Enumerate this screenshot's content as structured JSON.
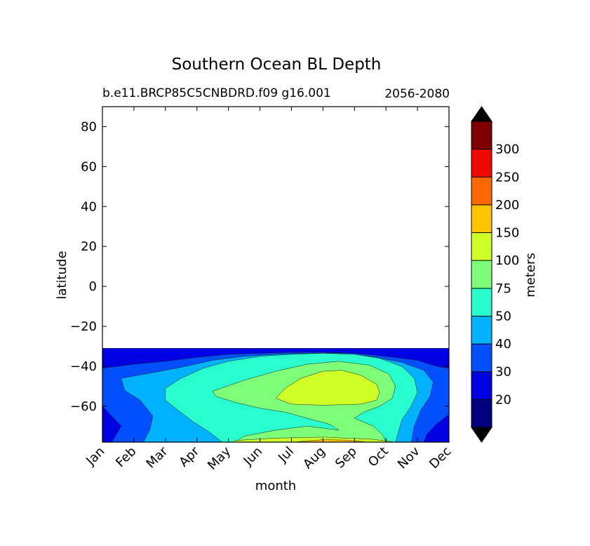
{
  "chart_data": {
    "type": "contourf",
    "title": "Southern Ocean BL Depth",
    "subtitle_left": "b.e11.BRCP85C5CNBDRD.f09 g16.001",
    "subtitle_right": "2056-2080",
    "xlabel": "month",
    "ylabel": "latitude",
    "x_ticks": [
      "Jan",
      "Feb",
      "Mar",
      "Apr",
      "May",
      "Jun",
      "Jul",
      "Aug",
      "Sep",
      "Oct",
      "Nov",
      "Dec"
    ],
    "y_ticks": [
      80,
      60,
      40,
      20,
      0,
      -20,
      -40,
      -60
    ],
    "ylim": [
      -78,
      90
    ],
    "xlim": [
      0,
      11
    ],
    "data_lat_range": [
      -78,
      -31
    ],
    "colorbar": {
      "label": "meters",
      "levels": [
        10,
        20,
        30,
        40,
        50,
        75,
        100,
        150,
        200,
        250,
        300,
        350
      ],
      "tick_labels": [
        "20",
        "30",
        "40",
        "50",
        "75",
        "100",
        "150",
        "200",
        "250",
        "300"
      ],
      "colors": [
        "#00007f",
        "#0000e3",
        "#0050ff",
        "#00b1ff",
        "#29ffce",
        "#7dff7a",
        "#ceff29",
        "#ffc400",
        "#ff6800",
        "#f10800",
        "#7f0000"
      ],
      "extend_low_color": "#000000",
      "extend_high_color": "#000000"
    },
    "regions": [
      {
        "level": 20,
        "color": "#0000e3",
        "points": [
          [
            0,
            -31
          ],
          [
            11,
            -31
          ],
          [
            11,
            -78
          ],
          [
            0,
            -78
          ]
        ]
      },
      {
        "level": 30,
        "color": "#0050ff",
        "points": [
          [
            0,
            -41
          ],
          [
            1,
            -39
          ],
          [
            2,
            -37.5
          ],
          [
            3,
            -35.5
          ],
          [
            4,
            -34
          ],
          [
            5,
            -33.5
          ],
          [
            6,
            -33
          ],
          [
            7,
            -33
          ],
          [
            8,
            -33.5
          ],
          [
            9,
            -35
          ],
          [
            10,
            -37
          ],
          [
            10.6,
            -40
          ],
          [
            11,
            -41
          ],
          [
            11,
            -64
          ],
          [
            10.6,
            -69
          ],
          [
            10.3,
            -74
          ],
          [
            10.2,
            -78
          ],
          [
            0.3,
            -78
          ],
          [
            0.6,
            -70
          ],
          [
            0,
            -60
          ]
        ]
      },
      {
        "level": 40,
        "color": "#00b1ff",
        "points": [
          [
            0.6,
            -46
          ],
          [
            1.5,
            -43.5
          ],
          [
            2.5,
            -40.5
          ],
          [
            3.5,
            -37
          ],
          [
            4.5,
            -35
          ],
          [
            5.5,
            -34
          ],
          [
            6.5,
            -33.5
          ],
          [
            7.5,
            -33.5
          ],
          [
            8.5,
            -35
          ],
          [
            9.5,
            -38
          ],
          [
            10.2,
            -42
          ],
          [
            10.5,
            -48
          ],
          [
            10.4,
            -55
          ],
          [
            10.1,
            -62
          ],
          [
            9.9,
            -70
          ],
          [
            9.8,
            -78
          ],
          [
            1.3,
            -78
          ],
          [
            1.5,
            -72
          ],
          [
            1.6,
            -65
          ],
          [
            1.2,
            -57
          ],
          [
            0.7,
            -52
          ]
        ]
      },
      {
        "level": 50,
        "color": "#29ffce",
        "points": [
          [
            2,
            -51
          ],
          [
            2.5,
            -46
          ],
          [
            3.2,
            -41
          ],
          [
            4,
            -37.5
          ],
          [
            5,
            -35
          ],
          [
            6,
            -34
          ],
          [
            7,
            -33.5
          ],
          [
            8,
            -34
          ],
          [
            8.8,
            -36
          ],
          [
            9.5,
            -40
          ],
          [
            9.9,
            -46
          ],
          [
            10,
            -53
          ],
          [
            9.8,
            -60
          ],
          [
            9.5,
            -67
          ],
          [
            9.3,
            -78
          ],
          [
            3.8,
            -78
          ],
          [
            3.4,
            -73
          ],
          [
            2.9,
            -68
          ],
          [
            2.4,
            -62
          ],
          [
            2,
            -57
          ]
        ]
      },
      {
        "level": 75,
        "color": "#7dff7a",
        "points": [
          [
            3.5,
            -52.5
          ],
          [
            4.5,
            -47
          ],
          [
            5.5,
            -42.5
          ],
          [
            6.5,
            -39
          ],
          [
            7.5,
            -37.5
          ],
          [
            8.5,
            -39.5
          ],
          [
            9.1,
            -44
          ],
          [
            9.3,
            -50
          ],
          [
            9.2,
            -56
          ],
          [
            8.8,
            -60
          ],
          [
            8.3,
            -63
          ],
          [
            8,
            -66
          ],
          [
            8.6,
            -70
          ],
          [
            8.9,
            -74.5
          ],
          [
            9,
            -78
          ],
          [
            4.2,
            -78
          ],
          [
            4.5,
            -75
          ],
          [
            5.5,
            -72
          ],
          [
            6.5,
            -70
          ],
          [
            7.5,
            -72
          ],
          [
            7.2,
            -69
          ],
          [
            6.5,
            -66
          ],
          [
            5.8,
            -63
          ],
          [
            5,
            -61
          ],
          [
            4.2,
            -58
          ],
          [
            3.6,
            -55
          ]
        ]
      },
      {
        "level": 100,
        "color": "#ceff29",
        "points": [
          [
            5.5,
            -56
          ],
          [
            5.8,
            -51
          ],
          [
            6.3,
            -46
          ],
          [
            7,
            -42.5
          ],
          [
            7.6,
            -42
          ],
          [
            8.2,
            -44.5
          ],
          [
            8.7,
            -49
          ],
          [
            8.8,
            -53
          ],
          [
            8.7,
            -57
          ],
          [
            8.2,
            -59
          ],
          [
            7,
            -59.5
          ],
          [
            6,
            -59
          ]
        ]
      },
      {
        "level": 100,
        "color": "#ceff29",
        "points": [
          [
            4.2,
            -77.2
          ],
          [
            5.5,
            -76
          ],
          [
            7,
            -75.5
          ],
          [
            8.5,
            -76.5
          ],
          [
            9.2,
            -77.8
          ],
          [
            9.2,
            -78
          ],
          [
            4.2,
            -78
          ]
        ]
      },
      {
        "level": 150,
        "color": "#ffc400",
        "points": [
          [
            6.2,
            -77.8
          ],
          [
            7,
            -76.8
          ],
          [
            7.8,
            -77
          ],
          [
            8.3,
            -77.8
          ],
          [
            8.3,
            -78
          ],
          [
            6.2,
            -78
          ]
        ]
      }
    ]
  }
}
